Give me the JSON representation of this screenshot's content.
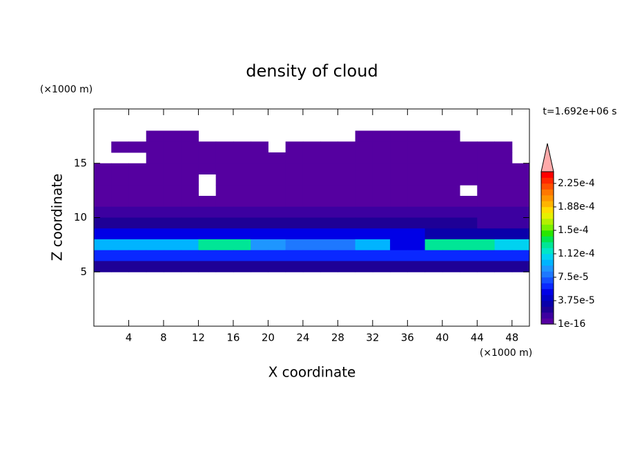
{
  "chart_data": {
    "type": "contour",
    "title": "density of cloud",
    "xlabel": "X coordinate",
    "ylabel": "Z coordinate",
    "x_unit": "(×1000 m)",
    "y_unit": "(×1000 m)",
    "time_label": "t=1.692e+06 s",
    "xlim": [
      0,
      50
    ],
    "ylim": [
      0,
      20
    ],
    "xticks": [
      4,
      8,
      12,
      16,
      20,
      24,
      28,
      32,
      36,
      40,
      44,
      48
    ],
    "yticks": [
      5,
      10,
      15
    ],
    "x": [
      1,
      3,
      5,
      7,
      9,
      11,
      13,
      15,
      17,
      19,
      21,
      23,
      25,
      27,
      29,
      31,
      33,
      35,
      37,
      39,
      41,
      43,
      45,
      47,
      49
    ],
    "y": [
      17.5,
      16.5,
      15.5,
      14.5,
      13.5,
      12.5,
      11.5,
      10.5,
      9.5,
      8.5,
      7.5,
      6.5,
      5.5
    ],
    "levels": [
      1e-16,
      9.375e-06,
      1.875e-05,
      2.8125e-05,
      3.75e-05,
      4.6875e-05,
      5.625e-05,
      6.5625e-05,
      7.5e-05,
      8.4375e-05,
      9.375e-05,
      0.000103125,
      0.0001125,
      0.000121875,
      0.00013125,
      0.000140625,
      0.00015,
      0.000159375,
      0.00016875,
      0.000178125,
      0.0001875,
      0.000196875,
      0.00020625,
      0.000215625,
      0.000225,
      0.000234375
    ],
    "colors": [
      "#5500a0",
      "#3c00a0",
      "#1e0096",
      "#0a00aa",
      "#0000c8",
      "#0000e6",
      "#0a28ff",
      "#1450ff",
      "#1e78ff",
      "#1e96ff",
      "#00b4ff",
      "#00d2f0",
      "#00e6c8",
      "#00e696",
      "#00e650",
      "#28e600",
      "#78f000",
      "#b4f000",
      "#e6f000",
      "#ffdc00",
      "#ffb400",
      "#ff9600",
      "#ff7800",
      "#ff5000",
      "#ff2800",
      "#ff0000"
    ],
    "extend_color": "#ffaaaa",
    "colorbar_ticks": [
      1e-16,
      {
        "value": 3.75e-05,
        "label": "3.75e-5"
      },
      {
        "value": 7.5e-05,
        "label": "7.5e-5"
      },
      {
        "value": 0.0001125,
        "label": "1.12e-4"
      },
      {
        "value": 0.00015,
        "label": "1.5e-4"
      },
      {
        "value": 0.0001875,
        "label": "1.88e-4"
      },
      {
        "value": 0.000225,
        "label": "2.25e-4"
      }
    ],
    "values": [
      [
        null,
        null,
        null,
        1e-06,
        1e-06,
        1e-06,
        null,
        null,
        null,
        null,
        null,
        null,
        null,
        null,
        null,
        1e-06,
        1e-06,
        1e-06,
        1e-06,
        1e-06,
        1e-06,
        null,
        null,
        null,
        null
      ],
      [
        null,
        1e-06,
        1e-06,
        1e-06,
        1e-06,
        1e-06,
        1e-06,
        1e-06,
        1e-06,
        1e-06,
        null,
        1e-06,
        1e-06,
        1e-06,
        1e-06,
        1e-06,
        1e-06,
        1e-06,
        1e-06,
        1e-06,
        1e-06,
        1e-06,
        1e-06,
        1e-06,
        null
      ],
      [
        null,
        null,
        null,
        1e-06,
        1e-06,
        1e-06,
        1e-06,
        1e-06,
        1e-06,
        1e-06,
        1e-06,
        1e-06,
        1e-06,
        1e-06,
        1e-06,
        1e-06,
        1e-06,
        1e-06,
        1e-06,
        1e-06,
        1e-06,
        1e-06,
        1e-06,
        1e-06,
        null
      ],
      [
        1e-06,
        1e-06,
        1e-06,
        1e-06,
        1e-06,
        1e-06,
        1e-06,
        1e-06,
        1e-06,
        1e-06,
        1e-06,
        1e-06,
        1e-06,
        1e-06,
        1e-06,
        1e-06,
        1e-06,
        1e-06,
        1e-06,
        1e-06,
        1e-06,
        1e-06,
        1e-06,
        1e-06,
        1e-06
      ],
      [
        2e-06,
        2e-06,
        2e-06,
        2e-06,
        2e-06,
        2e-06,
        null,
        2e-06,
        2e-06,
        2e-06,
        2e-06,
        2e-06,
        2e-06,
        2e-06,
        2e-06,
        2e-06,
        2e-06,
        2e-06,
        2e-06,
        2e-06,
        2e-06,
        2e-06,
        2e-06,
        2e-06,
        2e-06
      ],
      [
        3e-06,
        3e-06,
        3e-06,
        3e-06,
        3e-06,
        3e-06,
        null,
        3e-06,
        3e-06,
        3e-06,
        3e-06,
        3e-06,
        3e-06,
        3e-06,
        3e-06,
        3e-06,
        3e-06,
        3e-06,
        3e-06,
        3e-06,
        3e-06,
        null,
        3e-06,
        3e-06,
        3e-06
      ],
      [
        5e-06,
        5e-06,
        5e-06,
        5e-06,
        5e-06,
        5e-06,
        5e-06,
        5e-06,
        5e-06,
        5e-06,
        5e-06,
        5e-06,
        5e-06,
        5e-06,
        5e-06,
        5e-06,
        5e-06,
        5e-06,
        5e-06,
        5e-06,
        5e-06,
        5e-06,
        5e-06,
        5e-06,
        5e-06
      ],
      [
        1e-05,
        1e-05,
        1e-05,
        1e-05,
        1e-05,
        1e-05,
        1e-05,
        1e-05,
        1e-05,
        1e-05,
        1e-05,
        1e-05,
        1e-05,
        1e-05,
        1e-05,
        1e-05,
        1e-05,
        1e-05,
        1e-05,
        1e-05,
        1e-05,
        1e-05,
        1e-05,
        1e-05,
        1e-05
      ],
      [
        2e-05,
        2e-05,
        2e-05,
        2e-05,
        2e-05,
        2e-05,
        2e-05,
        2e-05,
        2e-05,
        2e-05,
        2e-05,
        2e-05,
        2e-05,
        2e-05,
        2e-05,
        2e-05,
        2e-05,
        2e-05,
        2e-05,
        2e-05,
        2e-05,
        2e-05,
        1e-05,
        1e-05,
        1e-05
      ],
      [
        5e-05,
        5e-05,
        5e-05,
        5e-05,
        5e-05,
        5e-05,
        5e-05,
        5e-05,
        5e-05,
        5e-05,
        5e-05,
        5e-05,
        5e-05,
        5e-05,
        5e-05,
        5e-05,
        5e-05,
        5e-05,
        5e-05,
        3e-05,
        3e-05,
        3e-05,
        3e-05,
        3e-05,
        3e-05
      ],
      [
        0.0001,
        0.0001,
        0.0001,
        0.0001,
        0.0001,
        0.0001,
        0.00013,
        0.00013,
        0.00013,
        9e-05,
        9e-05,
        8e-05,
        8e-05,
        8e-05,
        8e-05,
        0.0001,
        0.0001,
        5e-05,
        5e-05,
        0.00013,
        0.00013,
        0.00013,
        0.00013,
        0.00011,
        0.00011
      ],
      [
        6e-05,
        6e-05,
        6e-05,
        6e-05,
        6e-05,
        6e-05,
        6e-05,
        6e-05,
        6e-05,
        6e-05,
        6e-05,
        6e-05,
        6e-05,
        6e-05,
        6e-05,
        6e-05,
        6e-05,
        6e-05,
        6e-05,
        6e-05,
        6e-05,
        6e-05,
        6e-05,
        6e-05,
        6e-05
      ],
      [
        2e-05,
        2e-05,
        2e-05,
        2e-05,
        2e-05,
        2e-05,
        2e-05,
        2e-05,
        2e-05,
        2e-05,
        2e-05,
        2e-05,
        2e-05,
        2e-05,
        2e-05,
        2e-05,
        2e-05,
        2e-05,
        2e-05,
        2e-05,
        2e-05,
        2e-05,
        2e-05,
        2e-05,
        2e-05
      ]
    ]
  }
}
